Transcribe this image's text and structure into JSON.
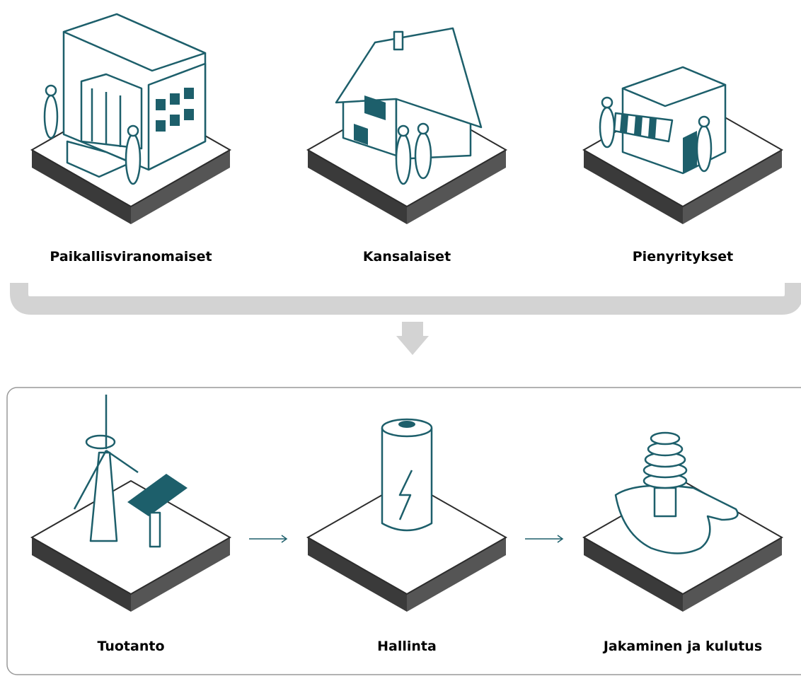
{
  "top": {
    "items": [
      {
        "label": "Paikallisviranomaiset"
      },
      {
        "label": "Kansalaiset"
      },
      {
        "label": "Pienyritykset"
      }
    ]
  },
  "bottom": {
    "items": [
      {
        "label": "Tuotanto"
      },
      {
        "label": "Hallinta"
      },
      {
        "label": "Jakaminen ja kulutus"
      }
    ]
  }
}
